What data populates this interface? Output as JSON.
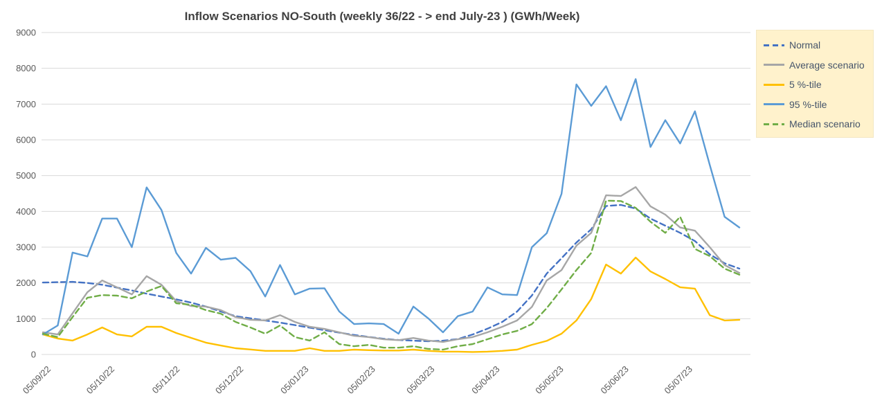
{
  "chart_data": {
    "type": "line",
    "title": "Inflow Scenarios NO-South (weekly 36/22 - > end July-23 )  (GWh/Week)",
    "xlabel": "",
    "ylabel": "",
    "unit": "GWh/Week",
    "ylim": [
      0,
      9000
    ],
    "y_ticks": [
      0,
      1000,
      2000,
      3000,
      4000,
      5000,
      6000,
      7000,
      8000,
      9000
    ],
    "grid": "horizontal",
    "legend_position": "right",
    "x_ticks": [
      {
        "week": 0,
        "label": "05/09/22"
      },
      {
        "week": 4.3,
        "label": "05/10/22"
      },
      {
        "week": 8.7,
        "label": "05/11/22"
      },
      {
        "week": 13.0,
        "label": "05/12/22"
      },
      {
        "week": 17.4,
        "label": "05/01/23"
      },
      {
        "week": 21.9,
        "label": "05/02/23"
      },
      {
        "week": 25.9,
        "label": "05/03/23"
      },
      {
        "week": 30.3,
        "label": "05/04/23"
      },
      {
        "week": 34.6,
        "label": "05/05/23"
      },
      {
        "week": 39.0,
        "label": "05/06/23"
      },
      {
        "week": 43.3,
        "label": "05/07/23"
      }
    ],
    "series": [
      {
        "name": "Normal",
        "color": "#4472C4",
        "style": "dashed",
        "values": [
          2010,
          2020,
          2030,
          2000,
          1950,
          1870,
          1790,
          1700,
          1620,
          1540,
          1450,
          1340,
          1200,
          1070,
          1010,
          950,
          890,
          820,
          750,
          680,
          610,
          545,
          490,
          440,
          405,
          385,
          370,
          385,
          430,
          560,
          720,
          910,
          1200,
          1650,
          2260,
          2690,
          3130,
          3500,
          4150,
          4180,
          4080,
          3800,
          3600,
          3400,
          3170,
          2800,
          2550,
          2400
        ]
      },
      {
        "name": "Average scenario",
        "color": "#A6A6A6",
        "style": "solid",
        "values": [
          620,
          560,
          1150,
          1740,
          2070,
          1875,
          1680,
          2190,
          1950,
          1490,
          1355,
          1340,
          1240,
          1045,
          970,
          950,
          1100,
          910,
          775,
          715,
          620,
          520,
          485,
          425,
          400,
          460,
          390,
          350,
          425,
          485,
          620,
          775,
          950,
          1330,
          2070,
          2360,
          3040,
          3400,
          4450,
          4430,
          4680,
          4140,
          3910,
          3550,
          3460,
          3000,
          2500,
          2280
        ]
      },
      {
        "name": "5 %-tile",
        "color": "#FFC000",
        "style": "solid",
        "values": [
          560,
          445,
          390,
          560,
          755,
          560,
          505,
          775,
          775,
          600,
          465,
          330,
          250,
          175,
          140,
          100,
          100,
          100,
          175,
          100,
          100,
          135,
          120,
          110,
          110,
          135,
          100,
          80,
          80,
          70,
          80,
          100,
          135,
          270,
          380,
          580,
          950,
          1550,
          2515,
          2260,
          2710,
          2320,
          2110,
          1880,
          1840,
          1100,
          950,
          970
        ]
      },
      {
        "name": "95 %-tile",
        "color": "#5B9BD5",
        "style": "solid",
        "values": [
          560,
          810,
          2850,
          2740,
          3800,
          3800,
          3000,
          4670,
          4040,
          2840,
          2260,
          2980,
          2650,
          2700,
          2330,
          1620,
          2500,
          1680,
          1840,
          1850,
          1200,
          850,
          870,
          850,
          580,
          1340,
          1010,
          620,
          1070,
          1200,
          1875,
          1680,
          1660,
          3000,
          3390,
          4490,
          7550,
          6950,
          7500,
          6550,
          7700,
          5800,
          6550,
          5900,
          6800,
          5300,
          3850,
          3550
        ]
      },
      {
        "name": "Median scenario",
        "color": "#70AD47",
        "style": "dashed",
        "values": [
          580,
          485,
          1045,
          1585,
          1660,
          1645,
          1570,
          1760,
          1915,
          1430,
          1390,
          1240,
          1140,
          910,
          755,
          580,
          810,
          485,
          390,
          620,
          290,
          230,
          270,
          190,
          190,
          230,
          155,
          135,
          230,
          290,
          425,
          560,
          660,
          850,
          1295,
          1820,
          2360,
          2840,
          4300,
          4290,
          4100,
          3710,
          3400,
          3850,
          2950,
          2750,
          2400,
          2230
        ]
      }
    ],
    "theme": {
      "gridline_color": "#D9D9D9",
      "axis_text_color": "#595959",
      "title_color": "#404040",
      "legend_bg_color": "#FFF2CC",
      "legend_text_color": "#44546A"
    }
  }
}
